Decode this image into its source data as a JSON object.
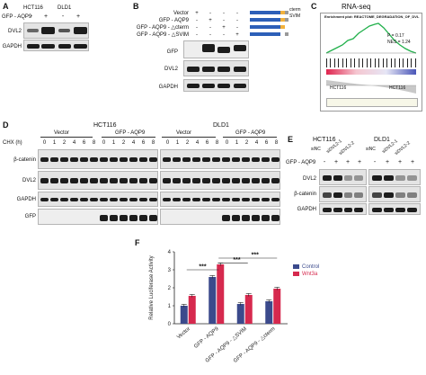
{
  "panelA": {
    "label": "A",
    "lines": [
      "HCT116",
      "DLD1"
    ],
    "gfp_aqp9": "GFP - AQP9",
    "signs": [
      "-",
      "+",
      "-",
      "+"
    ],
    "rows": [
      "DVL2",
      "GAPDH"
    ]
  },
  "panelB": {
    "label": "B",
    "conditions": [
      "Vector",
      "GFP - AQP9",
      "GFP - AQP9 - △cterm",
      "GFP - AQP9 - △SVIM"
    ],
    "signs": [
      [
        "+",
        "-",
        "-",
        "-"
      ],
      [
        "-",
        "+",
        "-",
        "-"
      ],
      [
        "-",
        "-",
        "+",
        "-"
      ],
      [
        "-",
        "-",
        "-",
        "+"
      ]
    ],
    "rows": [
      "GFP",
      "DVL2",
      "GAPDH"
    ],
    "domain_labels": [
      "cterm",
      "SVIM"
    ]
  },
  "panelC": {
    "label": "C",
    "title": "RNA-seq",
    "plot_title": "Enrichment plot: REACTOME_DEGRADATION_OF_DVL",
    "p_text": "P = 0.17",
    "nes_text": "NES = 1.24",
    "left_group": "HCT116",
    "right_group": "HCT116"
  },
  "panelD": {
    "label": "D",
    "lines": [
      "HCT116",
      "DLD1"
    ],
    "groups": [
      "Vector",
      "GFP - AQP9",
      "Vector",
      "GFP - AQP9"
    ],
    "chx_label": "CHX (h)",
    "timepoints": [
      "0",
      "1",
      "2",
      "4",
      "6",
      "8",
      "0",
      "1",
      "2",
      "4",
      "6",
      "8",
      "0",
      "1",
      "2",
      "4",
      "6",
      "8",
      "0",
      "1",
      "2",
      "4",
      "6",
      "8"
    ],
    "rows": [
      "β-catenin",
      "DVL2",
      "GAPDH",
      "GFP"
    ]
  },
  "panelE": {
    "label": "E",
    "lines": [
      "HCT116",
      "DLD1"
    ],
    "col_labels": [
      "siNC",
      "siDVL2-1",
      "siDVL2-2",
      "siNC",
      "siDVL2-1",
      "siDVL2-2"
    ],
    "gfp_aqp9": "GFP - AQP9",
    "signs": [
      "-",
      "+",
      "+",
      "+",
      "-",
      "+",
      "+",
      "+"
    ],
    "rows": [
      "DVL2",
      "β-catenin",
      "GAPDH"
    ]
  },
  "panelF": {
    "label": "F",
    "significance": "***"
  },
  "chart_data": {
    "type": "bar",
    "categories": [
      "Vector",
      "GFP - AQP9",
      "GFP - AQP9 - △SVIM",
      "GFP - AQP9 - △cterm"
    ],
    "series": [
      {
        "name": "Control",
        "color": "#3b4a8c",
        "values": [
          1.0,
          2.6,
          1.1,
          1.25
        ]
      },
      {
        "name": "Wnt3a",
        "color": "#d6294e",
        "values": [
          1.55,
          3.3,
          1.6,
          1.95
        ]
      }
    ],
    "ylabel": "Relative Luciferase Activity",
    "ylim": [
      0,
      4
    ],
    "yticks": [
      "0",
      "1",
      "2",
      "3",
      "4"
    ],
    "legend": "top-right",
    "grid": false
  }
}
